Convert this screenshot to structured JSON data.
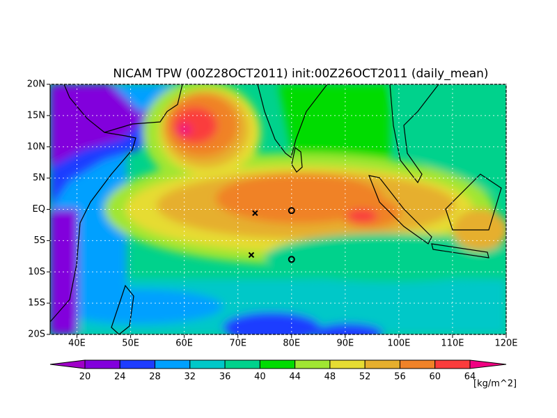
{
  "map": {
    "title": "NICAM TPW (00Z28OCT2011) init:00Z26OCT2011 (daily_mean)",
    "xlim": [
      35,
      120
    ],
    "ylim": [
      -20,
      20
    ],
    "lon_ticks": [
      {
        "value": 40,
        "label": "40E"
      },
      {
        "value": 50,
        "label": "50E"
      },
      {
        "value": 60,
        "label": "60E"
      },
      {
        "value": 70,
        "label": "70E"
      },
      {
        "value": 80,
        "label": "80E"
      },
      {
        "value": 90,
        "label": "90E"
      },
      {
        "value": 100,
        "label": "100E"
      },
      {
        "value": 110,
        "label": "110E"
      },
      {
        "value": 120,
        "label": "120E"
      }
    ],
    "lat_ticks": [
      {
        "value": -20,
        "label": "20S"
      },
      {
        "value": -15,
        "label": "15S"
      },
      {
        "value": -10,
        "label": "10S"
      },
      {
        "value": -5,
        "label": "5S"
      },
      {
        "value": 0,
        "label": "EQ"
      },
      {
        "value": 5,
        "label": "5N"
      },
      {
        "value": 10,
        "label": "10N"
      },
      {
        "value": 15,
        "label": "15N"
      },
      {
        "value": 20,
        "label": "20N"
      }
    ],
    "markers": [
      {
        "lon": 73.2,
        "lat": -0.6,
        "symbol": "x"
      },
      {
        "lon": 72.5,
        "lat": -7.3,
        "symbol": "x"
      },
      {
        "lon": 80,
        "lat": -0.2,
        "symbol": "o"
      },
      {
        "lon": 80,
        "lat": -8,
        "symbol": "o"
      }
    ],
    "colorbar": {
      "levels": [
        20,
        24,
        28,
        32,
        36,
        40,
        44,
        48,
        52,
        56,
        60,
        64
      ],
      "colors": [
        "#a000c8",
        "#8200dc",
        "#1e3cff",
        "#00a0ff",
        "#00c8c8",
        "#00d28c",
        "#00dc00",
        "#a0e632",
        "#e6dc32",
        "#e6af2d",
        "#f08228",
        "#fa3c3c",
        "#f00082"
      ],
      "unit": "[kg/m^2]"
    }
  }
}
